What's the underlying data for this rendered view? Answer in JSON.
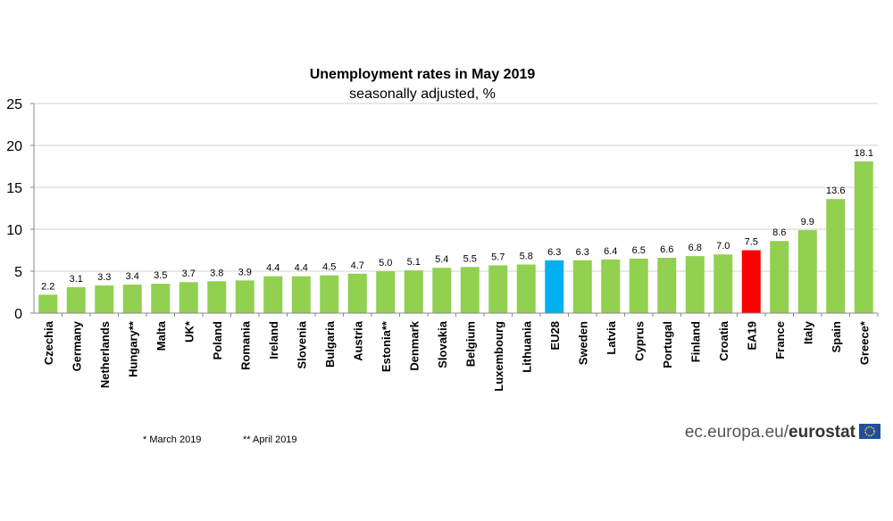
{
  "chart_data": {
    "type": "bar",
    "title": "Unemployment rates in May 2019",
    "subtitle": "seasonally adjusted, %",
    "xlabel": "",
    "ylabel": "",
    "ylim": [
      0,
      25
    ],
    "yticks": [
      0,
      5,
      10,
      15,
      20,
      25
    ],
    "grid": true,
    "categories": [
      "Czechia",
      "Germany",
      "Netherlands",
      "Hungary**",
      "Malta",
      "UK*",
      "Poland",
      "Romania",
      "Ireland",
      "Slovenia",
      "Bulgaria",
      "Austria",
      "Estonia**",
      "Denmark",
      "Slovakia",
      "Belgium",
      "Luxembourg",
      "Lithuania",
      "EU28",
      "Sweden",
      "Latvia",
      "Cyprus",
      "Portugal",
      "Finland",
      "Croatia",
      "EA19",
      "France",
      "Italy",
      "Spain",
      "Greece*"
    ],
    "values": [
      2.2,
      3.1,
      3.3,
      3.4,
      3.5,
      3.7,
      3.8,
      3.9,
      4.4,
      4.4,
      4.5,
      4.7,
      5.0,
      5.1,
      5.4,
      5.5,
      5.7,
      5.8,
      6.3,
      6.3,
      6.4,
      6.5,
      6.6,
      6.8,
      7.0,
      7.5,
      8.6,
      9.9,
      13.6,
      18.1
    ],
    "value_labels": [
      "2.2",
      "3.1",
      "3.3",
      "3.4",
      "3.5",
      "3.7",
      "3.8",
      "3.9",
      "4.4",
      "4.4",
      "4.5",
      "4.7",
      "5.0",
      "5.1",
      "5.4",
      "5.5",
      "5.7",
      "5.8",
      "6.3",
      "6.3",
      "6.4",
      "6.5",
      "6.6",
      "6.8",
      "7.0",
      "7.5",
      "8.6",
      "9.9",
      "13.6",
      "18.1"
    ],
    "colors": {
      "default": "#92d050",
      "EU28": "#00b0f0",
      "EA19": "#ff0000"
    }
  },
  "footnotes": [
    "* March 2019",
    "** April 2019"
  ],
  "source": {
    "prefix": "ec.europa.eu/",
    "brand": "eurostat",
    "icon": "eu-flag-icon"
  }
}
